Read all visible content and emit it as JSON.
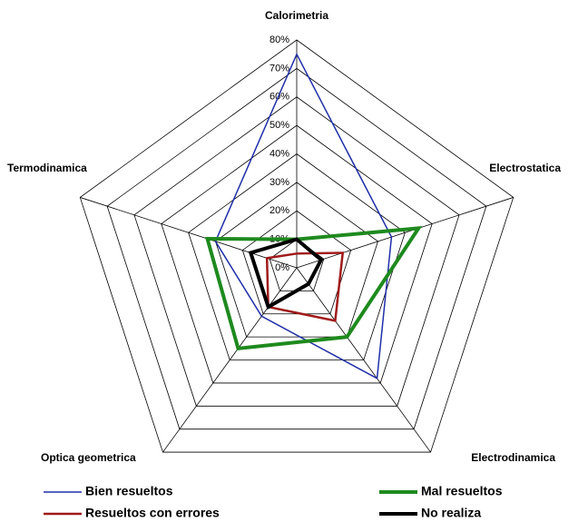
{
  "chart_data": {
    "type": "radar",
    "categories": [
      "Calorimetria",
      "Electrostatica",
      "Electrodinamica",
      "Optica geometrica",
      "Termodinamica"
    ],
    "ylim": [
      0,
      80
    ],
    "yticks": [
      {
        "value": 0,
        "label": "0%"
      },
      {
        "value": 10,
        "label": "10%"
      },
      {
        "value": 20,
        "label": "20%"
      },
      {
        "value": 30,
        "label": "30%"
      },
      {
        "value": 40,
        "label": "40%"
      },
      {
        "value": 50,
        "label": "50%"
      },
      {
        "value": 60,
        "label": "60%"
      },
      {
        "value": 70,
        "label": "70%"
      },
      {
        "value": 80,
        "label": "80%"
      }
    ],
    "grid": true,
    "series": [
      {
        "name": "Bien resueltos",
        "color": "#1f2fa8",
        "values": [
          75,
          35,
          48,
          21,
          30
        ]
      },
      {
        "name": "Mal resueltos",
        "color": "#1e8a1e",
        "values": [
          10,
          45,
          30,
          35,
          33
        ]
      },
      {
        "name": "Resueltos con errores",
        "color": "#a01a1a",
        "values": [
          5,
          17,
          23,
          17,
          11
        ]
      },
      {
        "name": "No realiza",
        "color": "#000000",
        "values": [
          10,
          9,
          7,
          17,
          17
        ]
      }
    ]
  }
}
